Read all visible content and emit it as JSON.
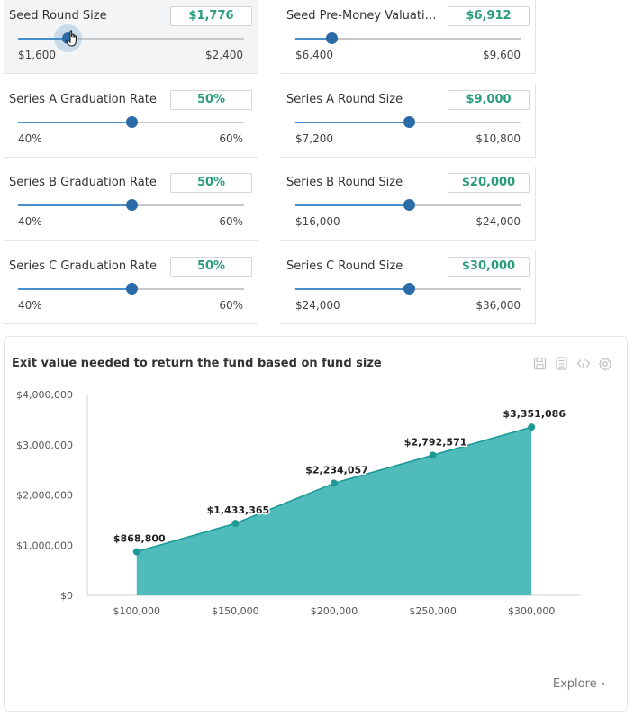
{
  "sliders": [
    {
      "label": "Seed Round Size",
      "value": "$1,776",
      "min": "$1,600",
      "max": "$2,400",
      "position": 0.22
    },
    {
      "label": "Seed Pre-Money Valuati…",
      "value": "$6,912",
      "min": "$6,400",
      "max": "$9,600",
      "position": 0.16
    },
    {
      "label": "Series A Graduation Rate",
      "value": "50%",
      "min": "40%",
      "max": "60%",
      "position": 0.5
    },
    {
      "label": "Series A Round Size",
      "value": "$9,000",
      "min": "$7,200",
      "max": "$10,800",
      "position": 0.5
    },
    {
      "label": "Series B Graduation Rate",
      "value": "50%",
      "min": "40%",
      "max": "60%",
      "position": 0.5
    },
    {
      "label": "Series B Round Size",
      "value": "$20,000",
      "min": "$16,000",
      "max": "$24,000",
      "position": 0.5
    },
    {
      "label": "Series C Graduation Rate",
      "value": "50%",
      "min": "40%",
      "max": "60%",
      "position": 0.5
    },
    {
      "label": "Series C Round Size",
      "value": "$30,000",
      "min": "$24,000",
      "max": "$36,000",
      "position": 0.5
    }
  ],
  "chart_card": {
    "title": "Exit value needed to return the fund based on fund size",
    "explore_label": "Explore ›",
    "toolbar_icons": [
      "save-icon",
      "calculator-icon",
      "code-icon",
      "settings-icon"
    ]
  },
  "colors": {
    "accent_value": "#2a9d7b",
    "slider_fill": "#4a90c8",
    "slider_knob": "#2b6ca8",
    "area_fill": "#4fbcbb",
    "area_line": "#1e9a94"
  },
  "chart_data": {
    "type": "area",
    "title": "Exit value needed to return the fund based on fund size",
    "x": [
      "$100,000",
      "$150,000",
      "$200,000",
      "$250,000",
      "$300,000"
    ],
    "x_values": [
      100000,
      150000,
      200000,
      250000,
      300000
    ],
    "values": [
      868800,
      1433365,
      2234057,
      2792571,
      3351086
    ],
    "data_labels": [
      "$868,800",
      "$1,433,365",
      "$2,234,057",
      "$2,792,571",
      "$3,351,086"
    ],
    "y_ticks": [
      "$0",
      "$1,000,000",
      "$2,000,000",
      "$3,000,000",
      "$4,000,000"
    ],
    "y_tick_values": [
      0,
      1000000,
      2000000,
      3000000,
      4000000
    ],
    "ylim": [
      0,
      4000000
    ],
    "xlim": [
      75000,
      325000
    ],
    "xlabel": "",
    "ylabel": "",
    "grid": false,
    "legend": "none"
  }
}
